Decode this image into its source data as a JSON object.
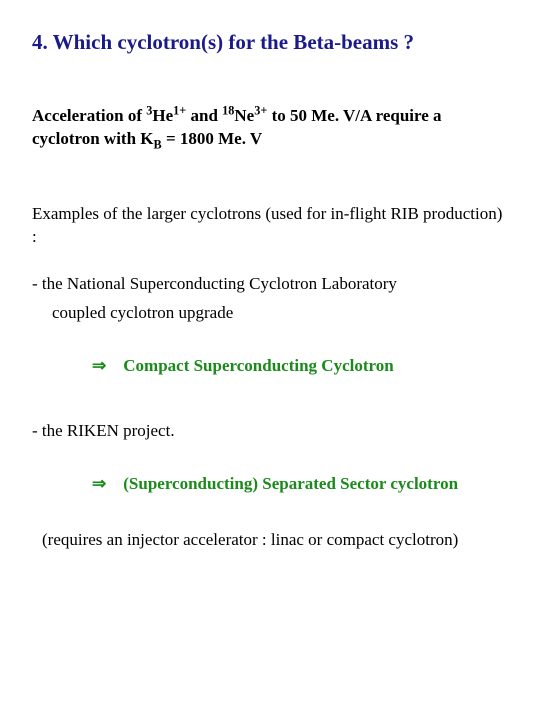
{
  "title": "4. Which cyclotron(s) for the Beta-beams ?",
  "para1_a": "Acceleration of ",
  "para1_he_sup": "3",
  "para1_he": "He",
  "para1_he_charge": "1+",
  "para1_b": " and ",
  "para1_ne_sup": "18",
  "para1_ne": "Ne",
  "para1_ne_charge": "3+",
  "para1_c": " to 50 Me. V/A require a cyclotron with K",
  "para1_sub": "B",
  "para1_d": " = 1800 Me. V",
  "para2": "Examples of the larger cyclotrons (used for in-flight RIB production) :",
  "bullet1": "- the National Superconducting Cyclotron Laboratory",
  "bullet1_sub": "coupled cyclotron upgrade",
  "arrow1_label": "Compact Superconducting Cyclotron",
  "bullet2": "- the RIKEN project.",
  "arrow2_label": "(Superconducting) Separated Sector cyclotron",
  "footnote": "(requires an injector accelerator : linac or compact cyclotron)",
  "arrow_glyph": "⇒",
  "colors": {
    "title_color": "#1a1a8b",
    "green": "#1a8b1a",
    "text": "#000000",
    "background": "#ffffff"
  },
  "typography": {
    "title_fontsize": 21,
    "body_fontsize": 17,
    "font_family": "Times New Roman"
  }
}
